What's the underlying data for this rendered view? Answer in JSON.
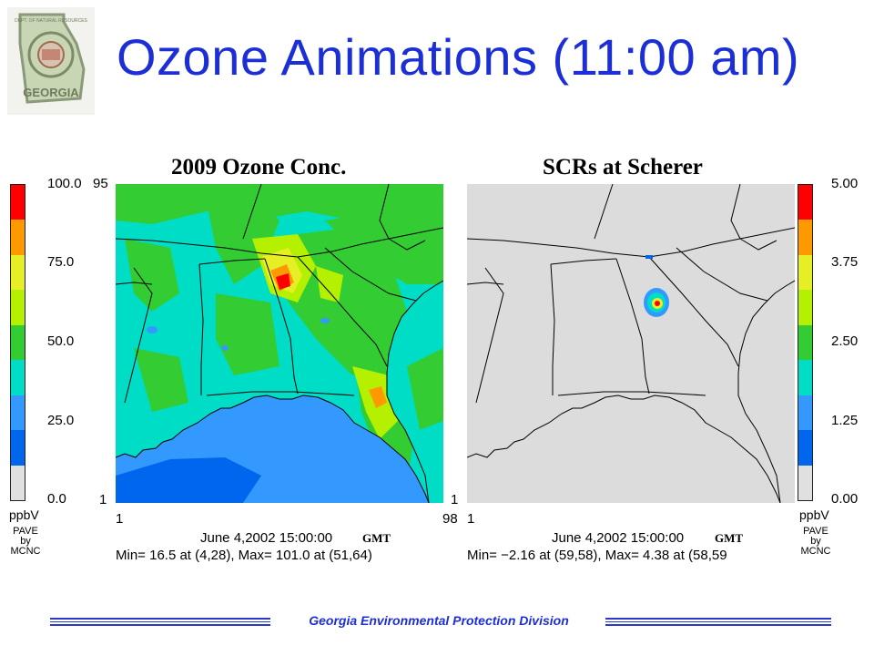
{
  "slide": {
    "title": "Ozone Animations (11:00 am)",
    "logo": {
      "icon": "georgia-dnr-seal-icon",
      "text_top": "DEPT. OF NATURAL RESOURCES",
      "text_bottom": "GEORGIA"
    },
    "footer": "Georgia Environmental Protection Division"
  },
  "panels": [
    {
      "title": "2009 Ozone Conc.",
      "colorbar": {
        "side": "left",
        "ticks": [
          "100.0",
          "75.0",
          "50.0",
          "25.0",
          "0.0"
        ],
        "unit": "ppbV",
        "credit": "PAVE\nby\nMCNC",
        "colors": [
          "#ff0000",
          "#ff9900",
          "#e6ee26",
          "#b4f000",
          "#33cc33",
          "#00ddc6",
          "#3399ff",
          "#0066ee",
          "#e0e0e0"
        ]
      },
      "axis": {
        "y_top": "95",
        "y_bottom": "1",
        "x_left": "1",
        "x_right": "98"
      },
      "date": "June 4,2002 15:00:00",
      "gmt": "GMT",
      "stats": "Min=    16.5 at (4,28), Max=   101.0 at (51,64)"
    },
    {
      "title": "SCRs at Scherer",
      "colorbar": {
        "side": "right",
        "ticks": [
          "5.00",
          "3.75",
          "2.50",
          "1.25",
          "0.00"
        ],
        "unit": "ppbV",
        "credit": "PAVE\nby\nMCNC",
        "colors": [
          "#ff0000",
          "#ff9900",
          "#e6ee26",
          "#b4f000",
          "#33cc33",
          "#00ddc6",
          "#3399ff",
          "#0066ee",
          "#e0e0e0"
        ]
      },
      "axis": {
        "y_bottom": "1",
        "x_left": "1"
      },
      "date": "June 4,2002 15:00:00",
      "gmt": "GMT",
      "stats": "Min=   −2.16 at (59,58), Max=    4.38 at (58,59"
    }
  ]
}
